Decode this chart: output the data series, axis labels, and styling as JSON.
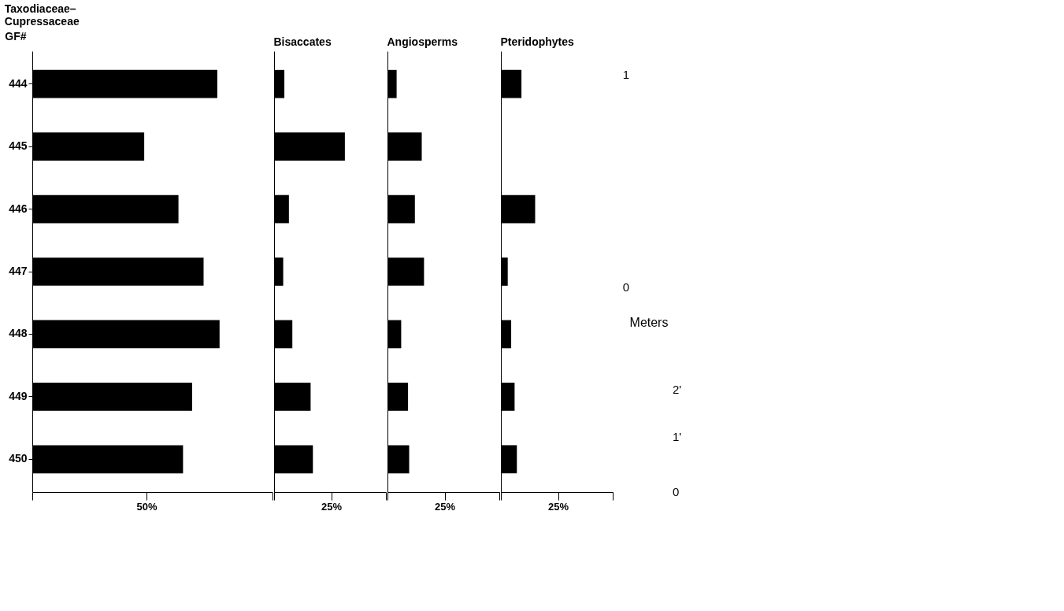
{
  "chart_data": [
    {
      "type": "bar",
      "orientation": "horizontal",
      "title": "Taxodiaceae–\nCupressaceae",
      "ylabel": "GF#",
      "categories": [
        "444",
        "445",
        "446",
        "447",
        "448",
        "449",
        "450"
      ],
      "values": [
        81,
        49,
        64,
        75,
        82,
        70,
        66
      ],
      "color": "#000000",
      "xlim": [
        0,
        105
      ],
      "xticks": [
        {
          "value": 0,
          "label": null
        },
        {
          "value": 50,
          "label": "50%"
        },
        {
          "value": 105,
          "label": null
        }
      ],
      "grid": false
    },
    {
      "type": "bar",
      "orientation": "horizontal",
      "title": "Bisaccates",
      "categories": [
        "444",
        "445",
        "446",
        "447",
        "448",
        "449",
        "450"
      ],
      "values": [
        4.5,
        31,
        6.5,
        4,
        8,
        16,
        17
      ],
      "color": "#000000",
      "xlim": [
        0,
        49
      ],
      "xticks": [
        {
          "value": 0,
          "label": null
        },
        {
          "value": 25,
          "label": "25%"
        },
        {
          "value": 49,
          "label": null
        }
      ],
      "tick_labels": "x",
      "grid": false
    },
    {
      "type": "bar",
      "orientation": "horizontal",
      "title": "Angiosperms",
      "categories": [
        "444",
        "445",
        "446",
        "447",
        "448",
        "449",
        "450"
      ],
      "values": [
        4,
        15,
        12,
        16,
        6,
        9,
        9.5
      ],
      "color": "#000000",
      "xlim": [
        0,
        49
      ],
      "xticks": [
        {
          "value": 0,
          "label": null
        },
        {
          "value": 25,
          "label": "25%"
        },
        {
          "value": 49,
          "label": null
        }
      ],
      "tick_labels": "x",
      "grid": false
    },
    {
      "type": "bar",
      "orientation": "horizontal",
      "title": "Pteridophytes",
      "categories": [
        "444",
        "445",
        "446",
        "447",
        "448",
        "449",
        "450"
      ],
      "values": [
        9,
        null,
        15,
        3,
        4.5,
        6,
        7
      ],
      "color": "#000000",
      "xlim": [
        0,
        49
      ],
      "xticks": [
        {
          "value": 0,
          "label": null
        },
        {
          "value": 25,
          "label": "25%"
        },
        {
          "value": 49,
          "label": null
        }
      ],
      "tick_labels": "x",
      "grid": false
    },
    {
      "type": "other",
      "annotations": [
        "1",
        "0",
        "Meters",
        "2'",
        "1'",
        "0"
      ]
    }
  ]
}
